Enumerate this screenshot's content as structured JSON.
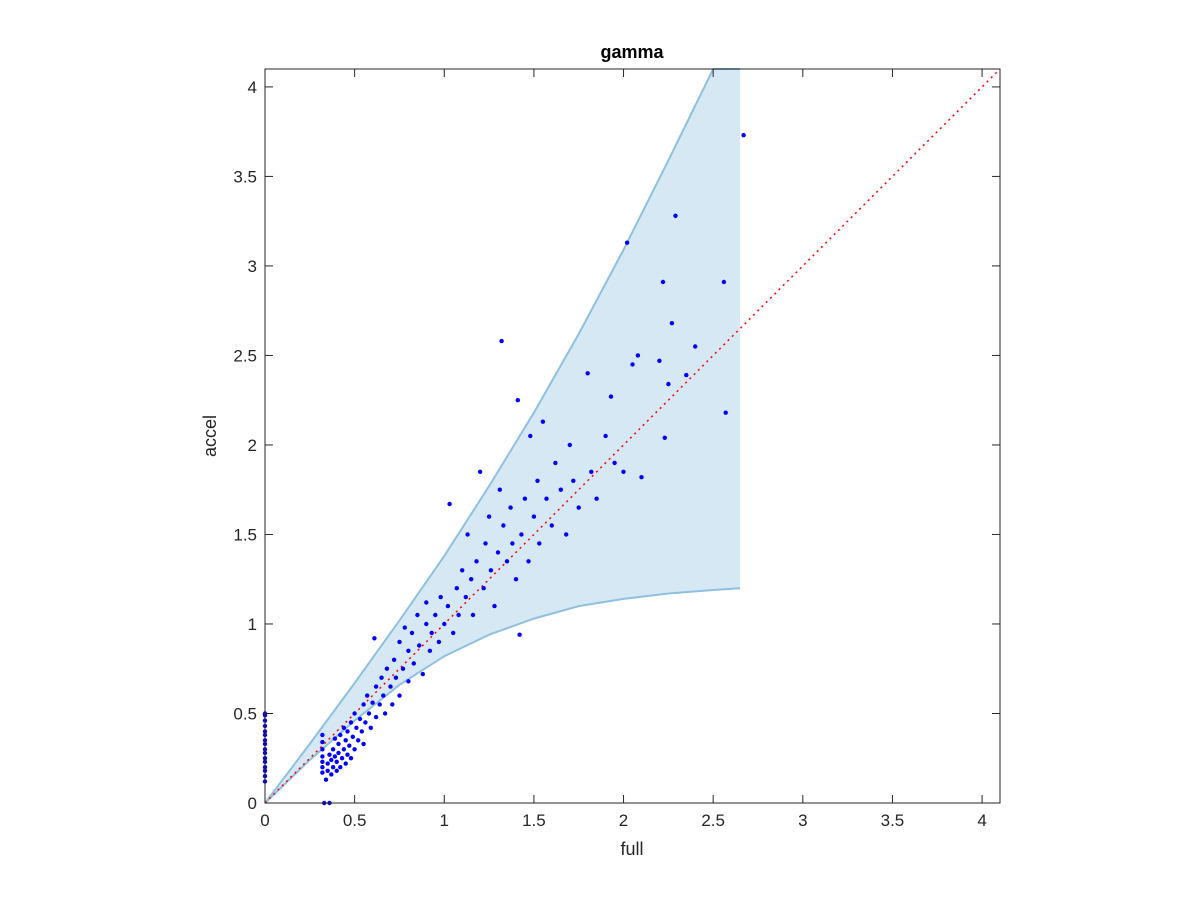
{
  "chart_data": {
    "type": "scatter",
    "title": "gamma",
    "xlabel": "full",
    "ylabel": "accel",
    "xlim": [
      0,
      4.1
    ],
    "ylim": [
      0,
      4.1
    ],
    "xticks": [
      0,
      0.5,
      1,
      1.5,
      2,
      2.5,
      3,
      3.5,
      4
    ],
    "yticks": [
      0,
      0.5,
      1,
      1.5,
      2,
      2.5,
      3,
      3.5,
      4
    ],
    "xtick_labels": [
      "0",
      "0.5",
      "1",
      "1.5",
      "2",
      "2.5",
      "3",
      "3.5",
      "4"
    ],
    "ytick_labels": [
      "0",
      "0.5",
      "1",
      "1.5",
      "2",
      "2.5",
      "3",
      "3.5",
      "4"
    ],
    "grid": false,
    "colors": {
      "points": "#0000ff",
      "band_fill": "#d6e8f4",
      "band_edge": "#8fc0df",
      "reference_line": "#ff0000",
      "axes": "#262626"
    },
    "reference_line": {
      "style": "dotted",
      "x": [
        0,
        4.1
      ],
      "y": [
        0,
        4.1
      ]
    },
    "band": {
      "x": [
        0,
        0.25,
        0.5,
        0.75,
        1,
        1.25,
        1.5,
        1.75,
        2,
        2.25,
        2.5,
        2.65
      ],
      "upper": [
        0,
        0.33,
        0.67,
        1.02,
        1.38,
        1.77,
        2.18,
        2.62,
        3.09,
        3.59,
        4.1,
        4.1
      ],
      "lower": [
        0,
        0.24,
        0.46,
        0.66,
        0.82,
        0.94,
        1.03,
        1.1,
        1.14,
        1.17,
        1.19,
        1.2
      ]
    },
    "series": [
      {
        "type": "scatter",
        "points": [
          [
            0,
            0.12
          ],
          [
            0,
            0.15
          ],
          [
            0,
            0.18
          ],
          [
            0,
            0.2
          ],
          [
            0,
            0.23
          ],
          [
            0,
            0.25
          ],
          [
            0,
            0.28
          ],
          [
            0,
            0.3
          ],
          [
            0,
            0.33
          ],
          [
            0,
            0.35
          ],
          [
            0,
            0.38
          ],
          [
            0,
            0.4
          ],
          [
            0,
            0.43
          ],
          [
            0,
            0.46
          ],
          [
            0,
            0.49
          ],
          [
            0,
            0.5
          ],
          [
            0.33,
            0
          ],
          [
            0.36,
            0
          ],
          [
            0.32,
            0.17
          ],
          [
            0.32,
            0.2
          ],
          [
            0.32,
            0.23
          ],
          [
            0.32,
            0.26
          ],
          [
            0.32,
            0.3
          ],
          [
            0.32,
            0.34
          ],
          [
            0.32,
            0.38
          ],
          [
            0.34,
            0.13
          ],
          [
            0.35,
            0.18
          ],
          [
            0.35,
            0.22
          ],
          [
            0.36,
            0.27
          ],
          [
            0.37,
            0.16
          ],
          [
            0.37,
            0.24
          ],
          [
            0.38,
            0.2
          ],
          [
            0.38,
            0.3
          ],
          [
            0.39,
            0.26
          ],
          [
            0.39,
            0.36
          ],
          [
            0.4,
            0.18
          ],
          [
            0.4,
            0.23
          ],
          [
            0.41,
            0.28
          ],
          [
            0.41,
            0.33
          ],
          [
            0.42,
            0.2
          ],
          [
            0.42,
            0.38
          ],
          [
            0.43,
            0.25
          ],
          [
            0.44,
            0.3
          ],
          [
            0.44,
            0.42
          ],
          [
            0.45,
            0.22
          ],
          [
            0.45,
            0.35
          ],
          [
            0.46,
            0.27
          ],
          [
            0.46,
            0.4
          ],
          [
            0.47,
            0.32
          ],
          [
            0.48,
            0.25
          ],
          [
            0.48,
            0.45
          ],
          [
            0.49,
            0.37
          ],
          [
            0.5,
            0.3
          ],
          [
            0.5,
            0.5
          ],
          [
            0.51,
            0.42
          ],
          [
            0.52,
            0.35
          ],
          [
            0.53,
            0.47
          ],
          [
            0.54,
            0.4
          ],
          [
            0.55,
            0.55
          ],
          [
            0.55,
            0.33
          ],
          [
            0.56,
            0.45
          ],
          [
            0.57,
            0.6
          ],
          [
            0.58,
            0.5
          ],
          [
            0.59,
            0.42
          ],
          [
            0.6,
            0.56
          ],
          [
            0.61,
            0.92
          ],
          [
            0.62,
            0.48
          ],
          [
            0.62,
            0.65
          ],
          [
            0.64,
            0.55
          ],
          [
            0.65,
            0.7
          ],
          [
            0.66,
            0.6
          ],
          [
            0.67,
            0.5
          ],
          [
            0.68,
            0.75
          ],
          [
            0.7,
            0.65
          ],
          [
            0.71,
            0.55
          ],
          [
            0.72,
            0.8
          ],
          [
            0.73,
            0.7
          ],
          [
            0.75,
            0.6
          ],
          [
            0.75,
            0.9
          ],
          [
            0.77,
            0.75
          ],
          [
            0.78,
            0.98
          ],
          [
            0.8,
            0.68
          ],
          [
            0.8,
            0.85
          ],
          [
            0.82,
            0.95
          ],
          [
            0.83,
            0.78
          ],
          [
            0.85,
            1.05
          ],
          [
            0.86,
            0.88
          ],
          [
            0.88,
            0.72
          ],
          [
            0.9,
            1.0
          ],
          [
            0.9,
            1.12
          ],
          [
            0.92,
            0.85
          ],
          [
            0.93,
            0.95
          ],
          [
            0.95,
            1.05
          ],
          [
            0.97,
            0.9
          ],
          [
            0.98,
            1.15
          ],
          [
            1.0,
            1.0
          ],
          [
            1.02,
            1.1
          ],
          [
            1.03,
            1.67
          ],
          [
            1.05,
            0.95
          ],
          [
            1.07,
            1.2
          ],
          [
            1.08,
            1.05
          ],
          [
            1.1,
            1.3
          ],
          [
            1.12,
            1.15
          ],
          [
            1.13,
            1.5
          ],
          [
            1.15,
            1.25
          ],
          [
            1.16,
            1.05
          ],
          [
            1.18,
            1.35
          ],
          [
            1.2,
            1.85
          ],
          [
            1.22,
            1.2
          ],
          [
            1.23,
            1.45
          ],
          [
            1.25,
            1.6
          ],
          [
            1.26,
            1.3
          ],
          [
            1.28,
            1.1
          ],
          [
            1.3,
            1.4
          ],
          [
            1.31,
            1.75
          ],
          [
            1.32,
            2.58
          ],
          [
            1.33,
            1.55
          ],
          [
            1.35,
            1.35
          ],
          [
            1.37,
            1.65
          ],
          [
            1.38,
            1.45
          ],
          [
            1.4,
            1.25
          ],
          [
            1.41,
            2.25
          ],
          [
            1.42,
            0.94
          ],
          [
            1.43,
            1.5
          ],
          [
            1.45,
            1.7
          ],
          [
            1.47,
            1.35
          ],
          [
            1.48,
            2.05
          ],
          [
            1.5,
            1.6
          ],
          [
            1.52,
            1.8
          ],
          [
            1.53,
            1.45
          ],
          [
            1.55,
            2.13
          ],
          [
            1.57,
            1.7
          ],
          [
            1.6,
            1.55
          ],
          [
            1.62,
            1.9
          ],
          [
            1.65,
            1.75
          ],
          [
            1.68,
            1.5
          ],
          [
            1.7,
            2.0
          ],
          [
            1.72,
            1.8
          ],
          [
            1.75,
            1.65
          ],
          [
            1.8,
            2.4
          ],
          [
            1.82,
            1.85
          ],
          [
            1.85,
            1.7
          ],
          [
            1.9,
            2.05
          ],
          [
            1.93,
            2.27
          ],
          [
            1.95,
            1.9
          ],
          [
            2.0,
            1.85
          ],
          [
            2.02,
            3.13
          ],
          [
            2.05,
            2.45
          ],
          [
            2.08,
            2.5
          ],
          [
            2.1,
            1.82
          ],
          [
            2.2,
            2.47
          ],
          [
            2.22,
            2.91
          ],
          [
            2.23,
            2.04
          ],
          [
            2.25,
            2.34
          ],
          [
            2.27,
            2.68
          ],
          [
            2.29,
            3.28
          ],
          [
            2.35,
            2.39
          ],
          [
            2.4,
            2.55
          ],
          [
            2.56,
            2.91
          ],
          [
            2.57,
            2.18
          ],
          [
            2.67,
            3.73
          ]
        ]
      }
    ]
  }
}
